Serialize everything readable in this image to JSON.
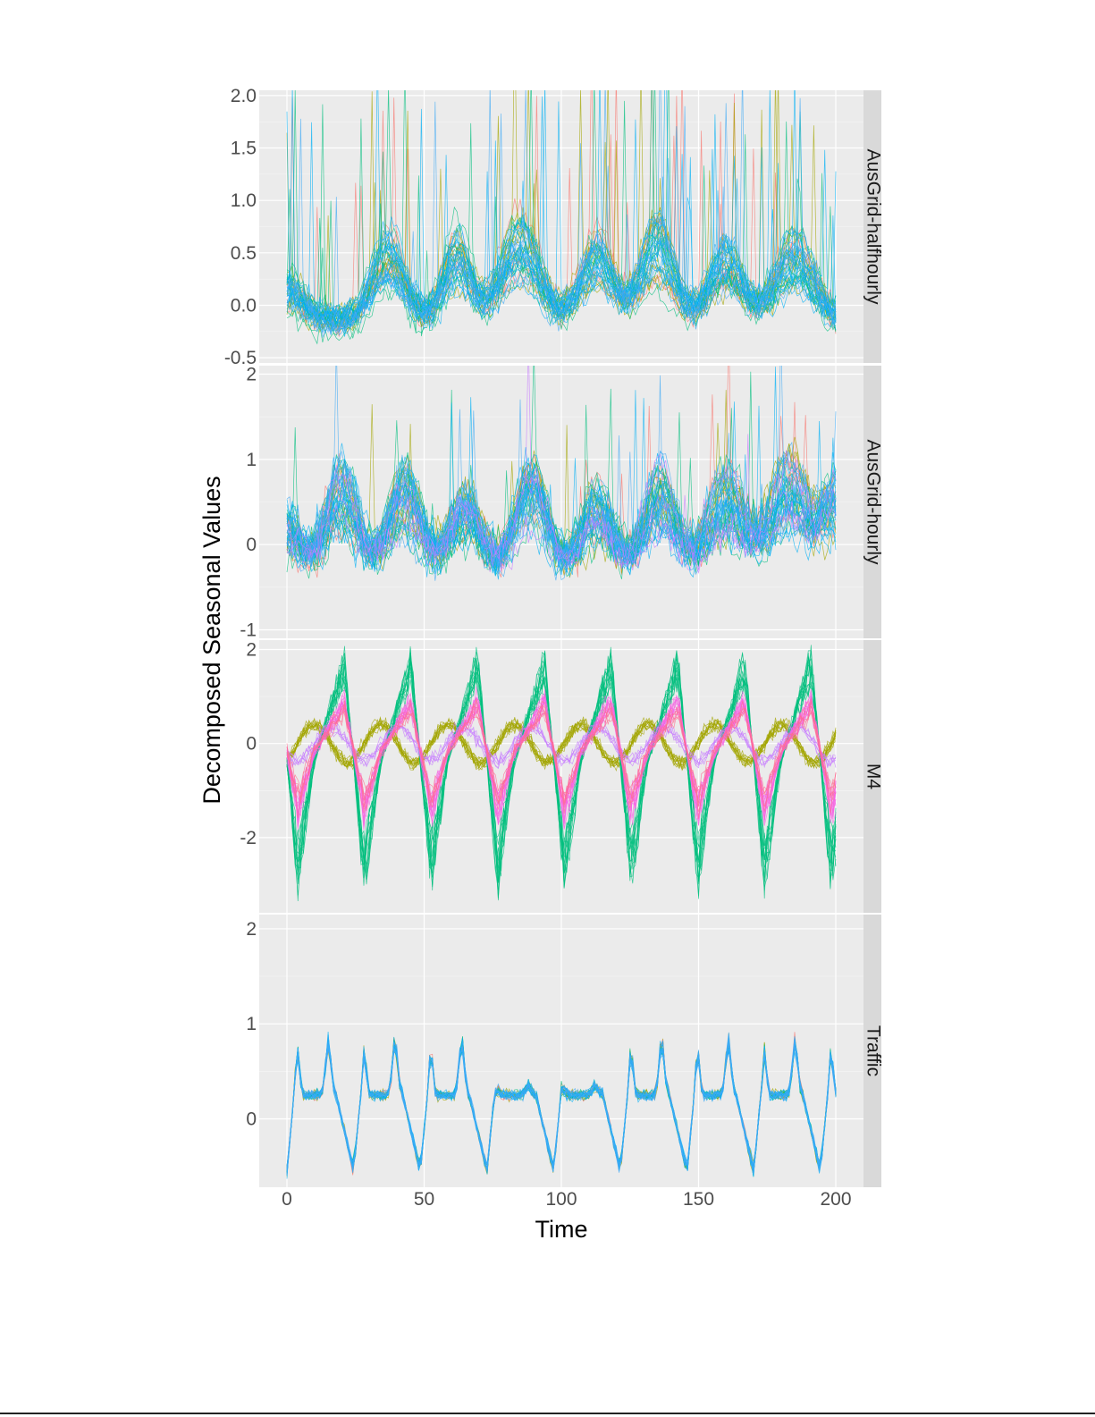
{
  "chart_data": {
    "type": "line",
    "layout": "faceted-vertical",
    "xlabel": "Time",
    "ylabel": "Decomposed Seasonal Values",
    "x_range": [
      0,
      200
    ],
    "x_ticks": [
      "0",
      "50",
      "100",
      "150",
      "200"
    ],
    "x_tick_values": [
      0,
      50,
      100,
      150,
      200
    ],
    "grid": true,
    "legend": "none",
    "facets": [
      {
        "name": "AusGrid-halfhourly",
        "ylim": [
          -0.55,
          2.05
        ],
        "y_ticks": [
          "2.0",
          "1.5",
          "1.0",
          "0.5",
          "0.0",
          "-0.5"
        ],
        "y_tick_values": [
          2.0,
          1.5,
          1.0,
          0.5,
          0.0,
          -0.5
        ],
        "pattern": {
          "peaks": [
            0,
            37,
            62,
            85,
            113,
            135,
            160,
            185
          ],
          "widths": [
            6,
            6,
            5,
            7,
            6,
            6,
            6,
            7
          ],
          "amps": [
            0.28,
            0.6,
            0.6,
            0.7,
            0.6,
            0.7,
            0.55,
            0.6
          ],
          "base": -0.15,
          "noise": 0.12,
          "spike_rate": 0.012,
          "spike_height": 1.4
        },
        "series": [
          {
            "color": "#F8766D",
            "count": 6
          },
          {
            "color": "#A3A500",
            "count": 8
          },
          {
            "color": "#00BF7D",
            "count": 12
          },
          {
            "color": "#00B0F6",
            "count": 14
          },
          {
            "color": "#3FA9F5",
            "count": 8
          }
        ]
      },
      {
        "name": "AusGrid-hourly",
        "ylim": [
          -1.1,
          2.1
        ],
        "y_ticks": [
          "2",
          "1",
          "0",
          "-1"
        ],
        "y_tick_values": [
          2,
          1,
          0,
          -1
        ],
        "pattern": {
          "peaks": [
            0,
            20,
            43,
            65,
            89,
            113,
            136,
            160,
            183,
            200
          ],
          "widths": [
            5,
            6,
            6,
            6,
            6,
            6,
            6,
            7,
            7,
            5
          ],
          "amps": [
            0.55,
            0.95,
            0.9,
            0.7,
            0.9,
            0.75,
            0.95,
            0.85,
            1.0,
            0.8
          ],
          "base": -0.35,
          "noise": 0.22,
          "spike_rate": 0.006,
          "spike_height": 1.2
        },
        "series": [
          {
            "color": "#F8766D",
            "count": 5
          },
          {
            "color": "#A3A500",
            "count": 8
          },
          {
            "color": "#00BF7D",
            "count": 12
          },
          {
            "color": "#00B0F6",
            "count": 14
          },
          {
            "color": "#3FA9F5",
            "count": 10
          },
          {
            "color": "#C77CFF",
            "count": 4
          }
        ]
      },
      {
        "name": "M4",
        "ylim": [
          -3.6,
          2.2
        ],
        "y_ticks": [
          "2",
          "0",
          "-2"
        ],
        "y_tick_values": [
          2,
          0,
          -2
        ],
        "pattern": {
          "period": 24.3,
          "offset": 10,
          "noise": 0.15
        },
        "series": [
          {
            "color": "#A3A500",
            "count": 14,
            "amp": 0.4,
            "shape": "sine",
            "phase": 0.5
          },
          {
            "color": "#00BF7D",
            "count": 16,
            "amp": 2.4,
            "shape": "saw"
          },
          {
            "color": "#C77CFF",
            "count": 6,
            "amp": 0.35,
            "shape": "sine",
            "phase": 0
          },
          {
            "color": "#F564E3",
            "count": 14,
            "amp": 1.3,
            "shape": "saw"
          },
          {
            "color": "#FF6C91",
            "count": 6,
            "amp": 1.1,
            "shape": "saw"
          }
        ]
      },
      {
        "name": "Traffic",
        "ylim": [
          -0.72,
          2.15
        ],
        "y_ticks": [
          "2",
          "1",
          "0"
        ],
        "y_tick_values": [
          2,
          1,
          0
        ],
        "pattern": {
          "cycle": 24.3,
          "offset": 0,
          "weekend_days": [
            3,
            4
          ],
          "noise": 0.05
        },
        "series": [
          {
            "color": "#A3A500",
            "count": 8
          },
          {
            "color": "#F8766D",
            "count": 3
          },
          {
            "color": "#00BF7D",
            "count": 6
          },
          {
            "color": "#00B0F6",
            "count": 10
          },
          {
            "color": "#3FA9F5",
            "count": 8
          }
        ]
      }
    ]
  }
}
